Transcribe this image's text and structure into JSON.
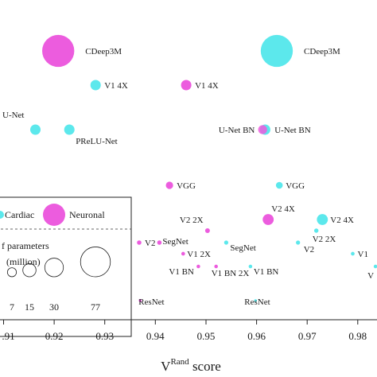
{
  "chart_data": {
    "type": "scatter",
    "xlabel": "V",
    "xlabel_sup": "Rand",
    "xlabel_suffix": " score",
    "ylabel": "",
    "xlim": [
      0.9093,
      0.9838
    ],
    "x_ticks": [
      0.91,
      0.92,
      0.93,
      0.94,
      0.95,
      0.96,
      0.97,
      0.98
    ],
    "x_tick_labels": [
      ".91",
      "0.92",
      "0.93",
      "0.94",
      "0.95",
      "0.96",
      "0.97",
      "0.98"
    ],
    "series_colors": {
      "Cardiac": "#5ce8ec",
      "Neuronal": "#ec5cde"
    },
    "legend": {
      "placement": "bottom-left",
      "series": [
        "Cardiac",
        "Neuronal"
      ],
      "size_title_line1": "f parameters",
      "size_title_line2": "(million)",
      "sizes": [
        7,
        15,
        30,
        77
      ],
      "size_labels": [
        "7",
        "15",
        "30",
        "77"
      ]
    },
    "points": [
      {
        "label": "CDeep3M",
        "x": 0.9208,
        "row": 1,
        "params": 77,
        "series": "Neuronal"
      },
      {
        "label": "CDeep3M",
        "x": 0.964,
        "row": 1,
        "params": 77,
        "series": "Cardiac"
      },
      {
        "label": "V1 4X",
        "x": 0.9282,
        "row": 2,
        "params": 8,
        "series": "Cardiac"
      },
      {
        "label": "V1 4X",
        "x": 0.9461,
        "row": 2,
        "params": 8,
        "series": "Neuronal"
      },
      {
        "label": "U-Net",
        "x": 0.9163,
        "row": 3,
        "params": 8,
        "series": "Cardiac"
      },
      {
        "label": "PReLU-Net",
        "x": 0.923,
        "row": 3,
        "params": 8,
        "series": "Cardiac"
      },
      {
        "label": "U-Net BN",
        "x": 0.9617,
        "row": 3,
        "params": 8,
        "series": "Cardiac"
      },
      {
        "label": "U-Net BN",
        "x": 0.9612,
        "row": 3,
        "params": 6,
        "series": "Neuronal"
      },
      {
        "label": "VGG",
        "x": 0.9428,
        "row": 4,
        "params": 4,
        "series": "Neuronal"
      },
      {
        "label": "VGG",
        "x": 0.9645,
        "row": 4,
        "params": 3.5,
        "series": "Cardiac"
      },
      {
        "label": "V2 4X",
        "x": 0.9623,
        "row": 5,
        "params": 9,
        "series": "Neuronal"
      },
      {
        "label": "V2 4X",
        "x": 0.973,
        "row": 5,
        "params": 9,
        "series": "Cardiac"
      },
      {
        "label": "V2 2X",
        "x": 0.9503,
        "row": 6,
        "params": 1.7,
        "series": "Neuronal"
      },
      {
        "label": "V2 2X",
        "x": 0.9718,
        "row": 6,
        "params": 1.4,
        "series": "Cardiac"
      },
      {
        "label": "V2",
        "x": 0.9368,
        "row": 7,
        "params": 0.6,
        "series": "Neuronal"
      },
      {
        "label": "SegNet",
        "x": 0.9408,
        "row": 7,
        "params": 0.6,
        "series": "Neuronal"
      },
      {
        "label": "SegNet",
        "x": 0.954,
        "row": 7,
        "params": 0.5,
        "series": "Cardiac"
      },
      {
        "label": "V2",
        "x": 0.9682,
        "row": 7,
        "params": 0.5,
        "series": "Cardiac"
      },
      {
        "label": "V1 2X",
        "x": 0.9455,
        "row": 8,
        "params": 0.35,
        "series": "Neuronal"
      },
      {
        "label": "V1",
        "x": 0.979,
        "row": 8,
        "params": 0.35,
        "series": "Cardiac"
      },
      {
        "label": "V1 BN",
        "x": 0.9485,
        "row": 9,
        "params": 0.3,
        "series": "Neuronal"
      },
      {
        "label": "V1 BN 2X",
        "x": 0.952,
        "row": 9,
        "params": 0.3,
        "series": "Neuronal"
      },
      {
        "label": "V1 BN",
        "x": 0.9588,
        "row": 9,
        "params": 0.3,
        "series": "Cardiac"
      },
      {
        "label": "V",
        "x": 0.9835,
        "row": 9,
        "params": 0.3,
        "series": "Cardiac"
      },
      {
        "label": "ResNet",
        "x": 0.937,
        "row": 10,
        "params": 0.1,
        "series": "Neuronal"
      },
      {
        "label": "ResNet",
        "x": 0.9598,
        "row": 10,
        "params": 0.1,
        "series": "Cardiac"
      }
    ]
  }
}
